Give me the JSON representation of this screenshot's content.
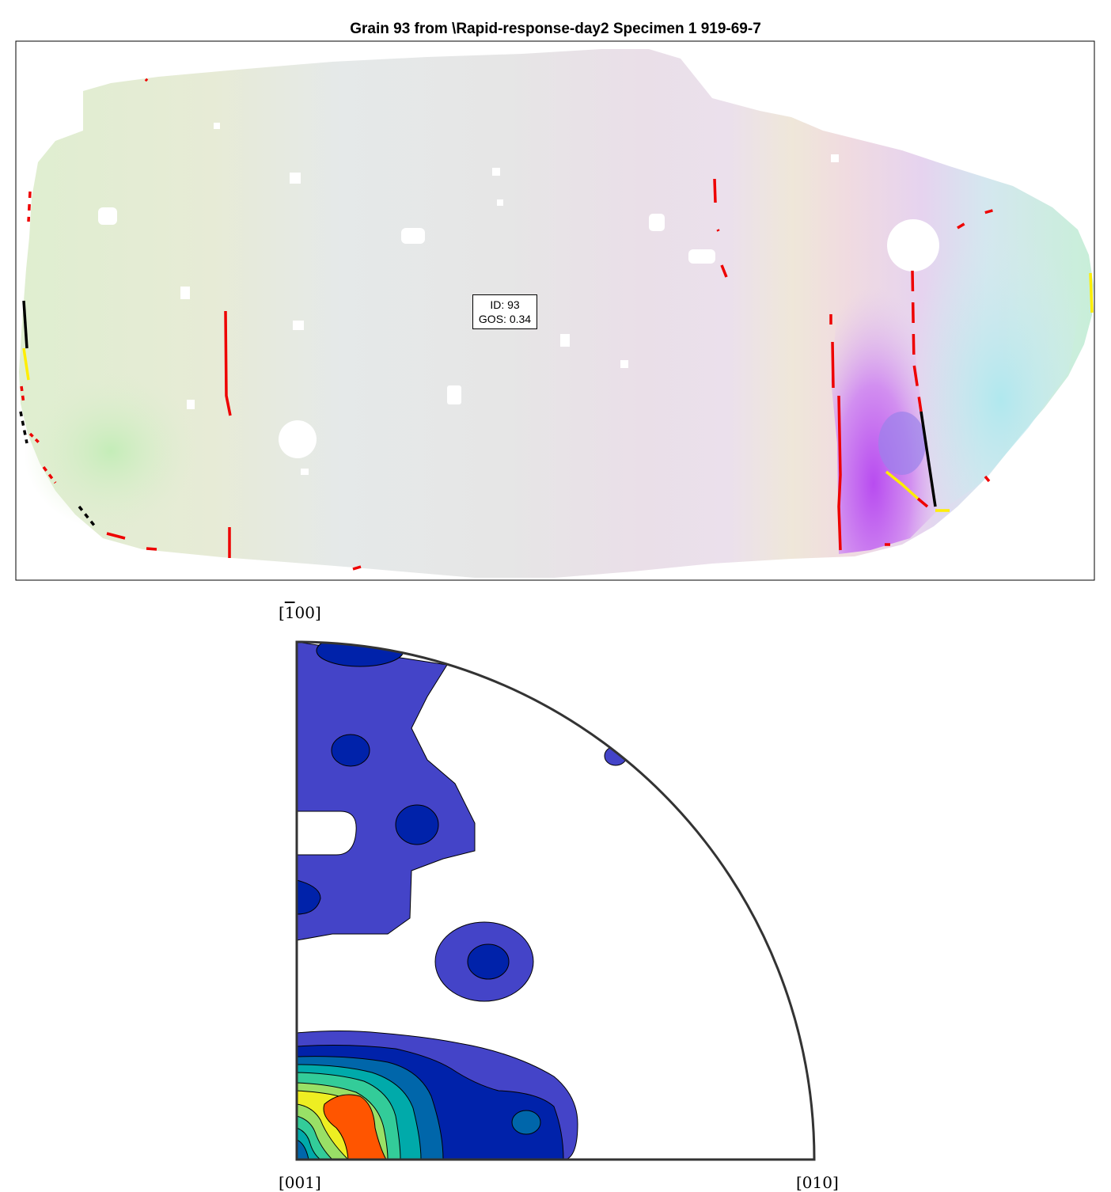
{
  "title": "Grain 93 from \\Rapid-response-day2 Specimen 1 919-69-7",
  "grain_info": {
    "id_line": "ID: 93",
    "gos_line": "GOS: 0.34"
  },
  "pole_figure": {
    "label_top_prefix": "[",
    "label_top_bar": "1",
    "label_top_suffix": "00]",
    "label_bottom_left": "[001]",
    "label_bottom_right": "[010]",
    "contour_colors": [
      "#ffffff",
      "#4444c8",
      "#0022aa",
      "#0066aa",
      "#00aaaa",
      "#33cc99",
      "#99e066",
      "#eeee22",
      "#ff5500"
    ]
  },
  "boundary_colors": {
    "red": "#ee0000",
    "yellow": "#ffee00",
    "black": "#000000"
  }
}
